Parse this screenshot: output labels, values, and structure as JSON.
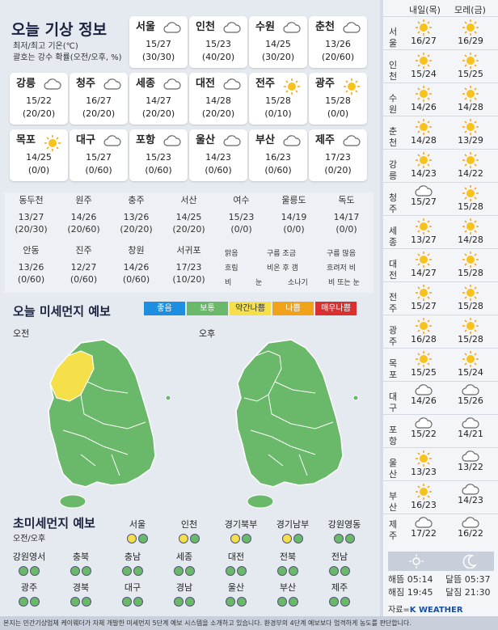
{
  "title": "오늘 기상 정보",
  "legend": [
    "최저/최고 기온(℃)",
    "괄호는 강수 확률(오전/오후, %)"
  ],
  "cities": [
    {
      "name": "서울",
      "temp": "15/27",
      "rain": "(30/30)",
      "icon": "cloud-icon"
    },
    {
      "name": "인천",
      "temp": "15/23",
      "rain": "(40/20)",
      "icon": "cloud-icon"
    },
    {
      "name": "수원",
      "temp": "14/25",
      "rain": "(30/20)",
      "icon": "cloud-icon"
    },
    {
      "name": "춘천",
      "temp": "13/26",
      "rain": "(20/60)",
      "icon": "cloud-icon"
    },
    {
      "name": "강릉",
      "temp": "15/22",
      "rain": "(20/20)",
      "icon": "cloud-icon"
    },
    {
      "name": "청주",
      "temp": "16/27",
      "rain": "(20/20)",
      "icon": "cloud-icon"
    },
    {
      "name": "세종",
      "temp": "14/27",
      "rain": "(20/20)",
      "icon": "cloud-icon"
    },
    {
      "name": "대전",
      "temp": "14/28",
      "rain": "(20/20)",
      "icon": "cloud-icon"
    },
    {
      "name": "전주",
      "temp": "15/28",
      "rain": "(0/10)",
      "icon": "sun-icon"
    },
    {
      "name": "광주",
      "temp": "15/28",
      "rain": "(0/0)",
      "icon": "sun-icon"
    },
    {
      "name": "목포",
      "temp": "14/25",
      "rain": "(0/0)",
      "icon": "sun-icon"
    },
    {
      "name": "대구",
      "temp": "15/27",
      "rain": "(0/60)",
      "icon": "cloud-icon"
    },
    {
      "name": "포항",
      "temp": "15/23",
      "rain": "(0/60)",
      "icon": "cloud-icon"
    },
    {
      "name": "울산",
      "temp": "14/23",
      "rain": "(0/60)",
      "icon": "cloud-icon"
    },
    {
      "name": "부산",
      "temp": "16/23",
      "rain": "(0/60)",
      "icon": "cloud-icon"
    },
    {
      "name": "제주",
      "temp": "17/23",
      "rain": "(0/20)",
      "icon": "cloud-icon"
    }
  ],
  "minor1": [
    {
      "name": "동두천",
      "temp": "13/27",
      "rain": "(20/30)"
    },
    {
      "name": "원주",
      "temp": "14/26",
      "rain": "(20/60)"
    },
    {
      "name": "충주",
      "temp": "13/26",
      "rain": "(20/20)"
    },
    {
      "name": "서산",
      "temp": "14/25",
      "rain": "(20/20)"
    },
    {
      "name": "여수",
      "temp": "15/23",
      "rain": "(0/0)"
    },
    {
      "name": "울릉도",
      "temp": "14/19",
      "rain": "(0/0)"
    },
    {
      "name": "독도",
      "temp": "14/17",
      "rain": "(0/0)"
    }
  ],
  "minor2": [
    {
      "name": "안동",
      "temp": "13/26",
      "rain": "(0/60)"
    },
    {
      "name": "진주",
      "temp": "12/27",
      "rain": "(0/60)"
    },
    {
      "name": "창원",
      "temp": "14/26",
      "rain": "(0/60)"
    },
    {
      "name": "서귀포",
      "temp": "17/23",
      "rain": "(10/20)"
    }
  ],
  "symbols": [
    "맑음",
    "구름 조금",
    "구름 많음",
    "흐림",
    "비온 후 갬",
    "흐려저 비",
    "비",
    "눈",
    "소나기",
    "비 또는 눈"
  ],
  "dust": {
    "title": "오늘 미세먼지 예보",
    "am": "오전",
    "pm": "오후",
    "levels": [
      {
        "label": "좋음",
        "color": "#1e8fe0"
      },
      {
        "label": "보통",
        "color": "#6ab96a"
      },
      {
        "label": "약간나쁨",
        "color": "#f5e04a"
      },
      {
        "label": "나쁨",
        "color": "#f0a21a"
      },
      {
        "label": "매우나쁨",
        "color": "#d93030"
      }
    ]
  },
  "ultra": {
    "title": "초미세먼지 예보",
    "sub": "오전/오후",
    "regions": [
      {
        "name": "서울",
        "am": "yellow",
        "pm": "green"
      },
      {
        "name": "인천",
        "am": "yellow",
        "pm": "green"
      },
      {
        "name": "경기북부",
        "am": "yellow",
        "pm": "green"
      },
      {
        "name": "경기남부",
        "am": "yellow",
        "pm": "green"
      },
      {
        "name": "강원영동",
        "am": "green",
        "pm": "green"
      },
      {
        "name": "강원영서",
        "am": "green",
        "pm": "green"
      },
      {
        "name": "충북",
        "am": "green",
        "pm": "green"
      },
      {
        "name": "충남",
        "am": "green",
        "pm": "green"
      },
      {
        "name": "세종",
        "am": "green",
        "pm": "green"
      },
      {
        "name": "대전",
        "am": "green",
        "pm": "green"
      },
      {
        "name": "전북",
        "am": "green",
        "pm": "green"
      },
      {
        "name": "전남",
        "am": "green",
        "pm": "green"
      },
      {
        "name": "광주",
        "am": "green",
        "pm": "green"
      },
      {
        "name": "경북",
        "am": "green",
        "pm": "green"
      },
      {
        "name": "대구",
        "am": "green",
        "pm": "green"
      },
      {
        "name": "경남",
        "am": "green",
        "pm": "green"
      },
      {
        "name": "울산",
        "am": "green",
        "pm": "green"
      },
      {
        "name": "부산",
        "am": "green",
        "pm": "green"
      },
      {
        "name": "제주",
        "am": "green",
        "pm": "green"
      }
    ]
  },
  "side": {
    "tomorrow": "내일(목)",
    "dayafter": "모레(금)",
    "rows": [
      {
        "city": "서울",
        "t1": "16/27",
        "i1": "sun-icon",
        "t2": "16/29",
        "i2": "sun-icon"
      },
      {
        "city": "인천",
        "t1": "15/24",
        "i1": "sun-icon",
        "t2": "15/25",
        "i2": "sun-icon"
      },
      {
        "city": "수원",
        "t1": "14/26",
        "i1": "sun-icon",
        "t2": "14/28",
        "i2": "sun-icon"
      },
      {
        "city": "춘천",
        "t1": "14/28",
        "i1": "sun-icon",
        "t2": "13/29",
        "i2": "sun-icon"
      },
      {
        "city": "강릉",
        "t1": "14/23",
        "i1": "sun-icon",
        "t2": "14/22",
        "i2": "sun-icon"
      },
      {
        "city": "청주",
        "t1": "15/27",
        "i1": "cloud-icon",
        "t2": "15/28",
        "i2": "sun-icon"
      },
      {
        "city": "세종",
        "t1": "13/27",
        "i1": "sun-icon",
        "t2": "14/28",
        "i2": "sun-icon"
      },
      {
        "city": "대전",
        "t1": "14/27",
        "i1": "sun-icon",
        "t2": "15/28",
        "i2": "sun-icon"
      },
      {
        "city": "전주",
        "t1": "15/27",
        "i1": "sun-icon",
        "t2": "15/28",
        "i2": "sun-icon"
      },
      {
        "city": "광주",
        "t1": "16/28",
        "i1": "sun-icon",
        "t2": "15/28",
        "i2": "sun-icon"
      },
      {
        "city": "목포",
        "t1": "15/25",
        "i1": "sun-icon",
        "t2": "15/24",
        "i2": "sun-icon"
      },
      {
        "city": "대구",
        "t1": "14/26",
        "i1": "cloud-icon",
        "t2": "15/26",
        "i2": "cloud-icon"
      },
      {
        "city": "포항",
        "t1": "15/22",
        "i1": "cloud-icon",
        "t2": "14/21",
        "i2": "cloud-icon"
      },
      {
        "city": "울산",
        "t1": "13/23",
        "i1": "sun-icon",
        "t2": "13/22",
        "i2": "cloud-icon"
      },
      {
        "city": "부산",
        "t1": "16/23",
        "i1": "sun-icon",
        "t2": "14/23",
        "i2": "cloud-icon"
      },
      {
        "city": "제주",
        "t1": "17/22",
        "i1": "cloud-icon",
        "t2": "16/22",
        "i2": "cloud-icon"
      }
    ],
    "sunrise": "해뜸 05:14",
    "sunset": "해짐 19:45",
    "moonrise": "달뜸 05:37",
    "moonset": "달짐 21:30",
    "source": "자료=",
    "brand": "K WEATHER"
  },
  "footer": "본지는 민간기상업체 케이웨더가 자체 개발한 미세먼지 5단계 예보 시스템을 소개하고 있습니다. 환경부의 4단계 예보보다 엄격하게 농도를 판단합니다."
}
